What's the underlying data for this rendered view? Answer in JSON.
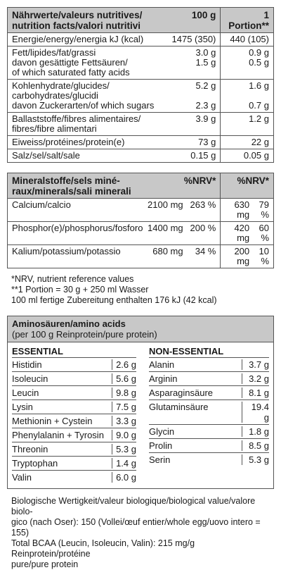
{
  "nutrition": {
    "header": {
      "label_line1": "Nährwerte/valeurs nutritives/",
      "label_line2": "nutrition facts/valori nutritivi",
      "col1": "100 g",
      "col2": "1 Portion**"
    },
    "rows": [
      {
        "lines": [
          "Energie/energy/energia kJ (kcal)"
        ],
        "v1": [
          "1475 (350)"
        ],
        "v2": [
          "440 (105)"
        ]
      },
      {
        "lines": [
          "Fett/lipides/fat/grassi",
          "davon gesättigte Fettsäuren/",
          "of which saturated fatty acids"
        ],
        "v1": [
          "3.0 g",
          "1.5 g",
          ""
        ],
        "v2": [
          "0.9 g",
          "0.5 g",
          ""
        ]
      },
      {
        "lines": [
          "Kohlenhydrate/glucides/",
          "carbohydrates/glucidi",
          "davon Zuckerarten/of which sugars"
        ],
        "v1": [
          "5.2 g",
          "",
          "2.3 g"
        ],
        "v2": [
          "1.6 g",
          "",
          "0.7 g"
        ]
      },
      {
        "lines": [
          "Ballaststoffe/fibres alimentaires/",
          "fibres/fibre alimentari"
        ],
        "v1": [
          "3.9 g",
          ""
        ],
        "v2": [
          "1.2 g",
          ""
        ]
      },
      {
        "lines": [
          "Eiweiss/protéines/protein(e)"
        ],
        "v1": [
          "73 g"
        ],
        "v2": [
          "22 g"
        ]
      },
      {
        "lines": [
          "Salz/sel/salt/sale"
        ],
        "v1": [
          "0.15 g"
        ],
        "v2": [
          "0.05 g"
        ]
      }
    ]
  },
  "minerals": {
    "header": {
      "label_line1": "Mineralstoffe/sels miné-",
      "label_line2": "raux/minerals/sali minerali",
      "col1": "%NRV*",
      "col2": "%NRV*"
    },
    "rows": [
      {
        "label": "Calcium/calcio",
        "mg1": "2100 mg",
        "pct1": "263 %",
        "mg2": "630 mg",
        "pct2": "79 %"
      },
      {
        "label": "Phosphor(e)/phosphorus/fosforo",
        "mg1": "1400 mg",
        "pct1": "200 %",
        "mg2": "420 mg",
        "pct2": "60 %"
      },
      {
        "label": "Kalium/potassium/potassio",
        "mg1": "680 mg",
        "pct1": "34 %",
        "mg2": "200 mg",
        "pct2": "10 %"
      }
    ]
  },
  "notes": [
    "*NRV, nutrient reference values",
    "**1 Portion = 30 g + 250 ml Wasser",
    "100 ml fertige Zubereitung enthalten 176 kJ (42 kcal)"
  ],
  "amino": {
    "title": "Aminosäuren/amino acids",
    "subtitle": "(per 100 g Reinprotein/pure protein)",
    "essential_title": "ESSENTIAL",
    "nonessential_title": "NON-ESSENTIAL",
    "essential": [
      {
        "name": "Histidin",
        "value": "2.6 g"
      },
      {
        "name": "Isoleucin",
        "value": "5.6 g"
      },
      {
        "name": "Leucin",
        "value": "9.8 g"
      },
      {
        "name": "Lysin",
        "value": "7.5 g"
      },
      {
        "name": "Methionin + Cystein",
        "value": "3.3 g"
      },
      {
        "name": "Phenylalanin + Tyrosin",
        "value": "9.0 g"
      },
      {
        "name": "Threonin",
        "value": "5.3 g"
      },
      {
        "name": "Tryptophan",
        "value": "1.4 g"
      },
      {
        "name": "Valin",
        "value": "6.0 g"
      }
    ],
    "nonessential": [
      {
        "name": "Alanin",
        "value": "3.7 g"
      },
      {
        "name": "Arginin",
        "value": "3.2 g"
      },
      {
        "name": "Asparaginsäure",
        "value": "8.1 g"
      },
      {
        "name": "Glutaminsäure",
        "value": "19.4 g"
      },
      {
        "name": "Glycin",
        "value": "1.8 g"
      },
      {
        "name": "Prolin",
        "value": "8.5 g"
      },
      {
        "name": "Serin",
        "value": "5.3 g"
      }
    ]
  },
  "footer": [
    "Biologische Wertigkeit/valeur biologique/biological value/valore biolo-",
    "gico (nach Oser): 150 (Vollei/œuf entier/whole egg/uovo intero = 155)",
    "Total BCAA (Leucin, Isoleucin, Valin): 215 mg/g Reinprotein/protéine",
    "pure/pure protein"
  ]
}
